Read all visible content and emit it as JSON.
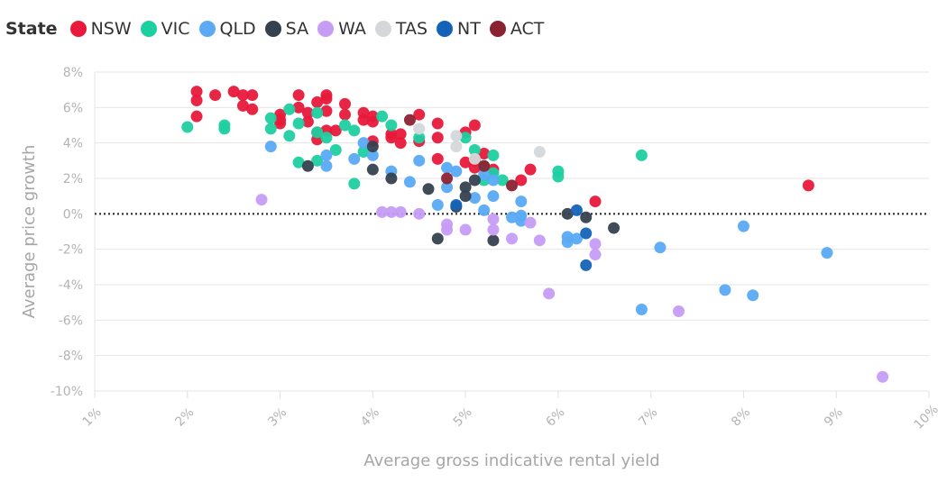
{
  "legend": {
    "title": "State",
    "items": [
      {
        "label": "NSW",
        "color": "#e8193c"
      },
      {
        "label": "VIC",
        "color": "#1ecfa0"
      },
      {
        "label": "QLD",
        "color": "#5aaaf5"
      },
      {
        "label": "SA",
        "color": "#36414f"
      },
      {
        "label": "WA",
        "color": "#c69cf5"
      },
      {
        "label": "TAS",
        "color": "#d5d8db"
      },
      {
        "label": "NT",
        "color": "#1463b8"
      },
      {
        "label": "ACT",
        "color": "#8b2231"
      }
    ]
  },
  "chart_data": {
    "type": "scatter",
    "xlabel": "Average gross indicative rental yield",
    "ylabel": "Average price growth",
    "xlim": [
      1,
      10
    ],
    "ylim": [
      -10,
      8
    ],
    "x_ticks": [
      1,
      2,
      3,
      4,
      5,
      6,
      7,
      8,
      9,
      10
    ],
    "x_tick_labels": [
      "1%",
      "2%",
      "3%",
      "4%",
      "5%",
      "6%",
      "7%",
      "8%",
      "9%",
      "10%"
    ],
    "y_ticks": [
      8,
      6,
      4,
      2,
      0,
      -2,
      -4,
      -6,
      -8,
      -10
    ],
    "y_tick_labels": [
      "8%",
      "6%",
      "4%",
      "2%",
      "0%",
      "-2%",
      "-4%",
      "-6%",
      "-8%",
      "-10%"
    ],
    "grid": true,
    "zero_line": "dotted",
    "legend_position": "top-left",
    "series": [
      {
        "name": "NSW",
        "points": [
          [
            2.1,
            6.9
          ],
          [
            2.1,
            6.4
          ],
          [
            2.1,
            5.5
          ],
          [
            2.3,
            6.7
          ],
          [
            2.5,
            6.9
          ],
          [
            2.6,
            6.7
          ],
          [
            2.6,
            6.1
          ],
          [
            2.7,
            6.7
          ],
          [
            2.7,
            5.9
          ],
          [
            3.0,
            5.6
          ],
          [
            3.0,
            5.3
          ],
          [
            3.0,
            5.1
          ],
          [
            3.2,
            6.7
          ],
          [
            3.2,
            6.0
          ],
          [
            3.3,
            5.7
          ],
          [
            3.3,
            5.2
          ],
          [
            3.4,
            6.3
          ],
          [
            3.4,
            4.6
          ],
          [
            3.4,
            4.2
          ],
          [
            3.5,
            6.7
          ],
          [
            3.5,
            6.5
          ],
          [
            3.5,
            5.8
          ],
          [
            3.5,
            4.7
          ],
          [
            3.6,
            4.7
          ],
          [
            3.7,
            6.2
          ],
          [
            3.7,
            5.6
          ],
          [
            3.9,
            5.7
          ],
          [
            3.9,
            5.3
          ],
          [
            4.0,
            5.5
          ],
          [
            4.0,
            5.2
          ],
          [
            4.0,
            4.1
          ],
          [
            4.2,
            4.5
          ],
          [
            4.2,
            4.3
          ],
          [
            4.3,
            4.5
          ],
          [
            4.3,
            4.0
          ],
          [
            4.5,
            5.6
          ],
          [
            4.5,
            4.1
          ],
          [
            4.7,
            5.1
          ],
          [
            4.7,
            4.3
          ],
          [
            4.7,
            3.1
          ],
          [
            5.0,
            4.6
          ],
          [
            5.0,
            2.9
          ],
          [
            5.1,
            5.0
          ],
          [
            5.1,
            3.0
          ],
          [
            5.1,
            2.6
          ],
          [
            5.2,
            3.4
          ],
          [
            5.3,
            2.5
          ],
          [
            5.6,
            1.9
          ],
          [
            5.7,
            2.5
          ],
          [
            6.4,
            0.7
          ],
          [
            8.7,
            1.6
          ]
        ]
      },
      {
        "name": "VIC",
        "points": [
          [
            2.0,
            4.9
          ],
          [
            2.4,
            5.0
          ],
          [
            2.4,
            4.8
          ],
          [
            2.9,
            5.4
          ],
          [
            2.9,
            4.8
          ],
          [
            3.1,
            5.9
          ],
          [
            3.1,
            4.4
          ],
          [
            3.2,
            5.1
          ],
          [
            3.2,
            2.9
          ],
          [
            3.4,
            5.7
          ],
          [
            3.4,
            4.6
          ],
          [
            3.4,
            3.0
          ],
          [
            3.5,
            4.3
          ],
          [
            3.6,
            3.6
          ],
          [
            3.7,
            5.0
          ],
          [
            3.8,
            4.7
          ],
          [
            3.8,
            1.7
          ],
          [
            3.9,
            3.5
          ],
          [
            4.1,
            5.5
          ],
          [
            4.2,
            5.0
          ],
          [
            4.5,
            4.3
          ],
          [
            5.0,
            4.3
          ],
          [
            5.1,
            3.6
          ],
          [
            5.2,
            2.7
          ],
          [
            5.2,
            1.9
          ],
          [
            5.3,
            3.3
          ],
          [
            5.3,
            2.3
          ],
          [
            5.4,
            1.9
          ],
          [
            6.0,
            2.4
          ],
          [
            6.0,
            2.1
          ],
          [
            6.9,
            3.3
          ]
        ]
      },
      {
        "name": "QLD",
        "points": [
          [
            2.9,
            3.8
          ],
          [
            3.5,
            3.3
          ],
          [
            3.5,
            2.7
          ],
          [
            3.8,
            3.1
          ],
          [
            3.9,
            4.0
          ],
          [
            4.0,
            3.3
          ],
          [
            4.2,
            2.4
          ],
          [
            4.4,
            1.8
          ],
          [
            4.5,
            3.0
          ],
          [
            4.7,
            0.5
          ],
          [
            4.8,
            2.6
          ],
          [
            4.8,
            1.5
          ],
          [
            4.9,
            2.4
          ],
          [
            5.1,
            0.9
          ],
          [
            5.2,
            2.2
          ],
          [
            5.2,
            0.2
          ],
          [
            5.3,
            1.0
          ],
          [
            5.3,
            1.9
          ],
          [
            5.5,
            -0.2
          ],
          [
            5.6,
            0.7
          ],
          [
            5.6,
            -0.1
          ],
          [
            5.6,
            -0.4
          ],
          [
            6.1,
            -1.3
          ],
          [
            6.1,
            -1.6
          ],
          [
            6.2,
            -1.4
          ],
          [
            6.9,
            -5.4
          ],
          [
            7.1,
            -1.9
          ],
          [
            7.8,
            -4.3
          ],
          [
            8.0,
            -0.7
          ],
          [
            8.1,
            -4.6
          ],
          [
            8.9,
            -2.2
          ]
        ]
      },
      {
        "name": "SA",
        "points": [
          [
            3.3,
            2.7
          ],
          [
            4.0,
            3.8
          ],
          [
            4.0,
            2.5
          ],
          [
            4.2,
            2.0
          ],
          [
            4.6,
            1.4
          ],
          [
            4.7,
            -1.4
          ],
          [
            4.9,
            0.4
          ],
          [
            5.0,
            1.5
          ],
          [
            5.0,
            1.0
          ],
          [
            5.1,
            1.9
          ],
          [
            5.3,
            -1.5
          ],
          [
            6.1,
            0.0
          ],
          [
            6.3,
            -0.2
          ],
          [
            6.6,
            -0.8
          ]
        ]
      },
      {
        "name": "WA",
        "points": [
          [
            2.8,
            0.8
          ],
          [
            4.1,
            0.1
          ],
          [
            4.2,
            0.1
          ],
          [
            4.3,
            0.1
          ],
          [
            4.5,
            0.0
          ],
          [
            4.8,
            -0.6
          ],
          [
            4.8,
            -0.9
          ],
          [
            5.0,
            -0.9
          ],
          [
            5.3,
            -0.3
          ],
          [
            5.3,
            -0.9
          ],
          [
            5.5,
            -1.4
          ],
          [
            5.7,
            -0.5
          ],
          [
            5.8,
            -1.5
          ],
          [
            5.9,
            -4.5
          ],
          [
            6.4,
            -1.7
          ],
          [
            6.4,
            -2.3
          ],
          [
            7.3,
            -5.5
          ],
          [
            9.5,
            -9.2
          ]
        ]
      },
      {
        "name": "TAS",
        "points": [
          [
            4.5,
            4.8
          ],
          [
            4.9,
            4.4
          ],
          [
            4.9,
            3.8
          ],
          [
            5.1,
            3.1
          ],
          [
            5.8,
            3.5
          ]
        ]
      },
      {
        "name": "NT",
        "points": [
          [
            4.9,
            0.5
          ],
          [
            6.2,
            0.2
          ],
          [
            6.3,
            -1.1
          ],
          [
            6.3,
            -2.9
          ]
        ]
      },
      {
        "name": "ACT",
        "points": [
          [
            4.4,
            5.3
          ],
          [
            4.8,
            2.0
          ],
          [
            5.2,
            2.7
          ],
          [
            5.5,
            1.6
          ]
        ]
      }
    ]
  }
}
